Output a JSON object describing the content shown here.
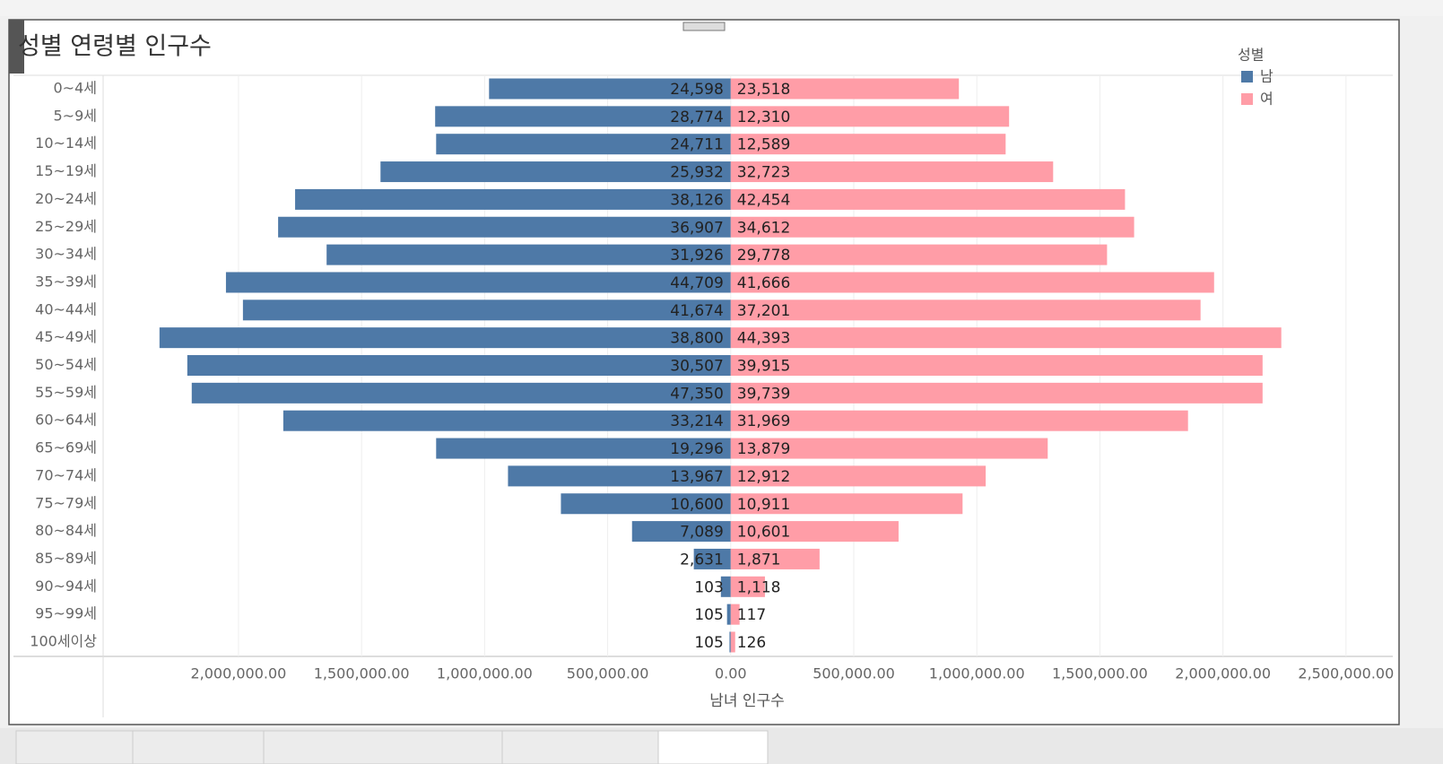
{
  "chart_data": {
    "type": "diverging-bar",
    "title": "성별 연령별 인구수",
    "x_label": "남녀 인구수",
    "legend_title": "성별",
    "legend_position": "top-right",
    "categories": [
      "0~4세",
      "5~9세",
      "10~14세",
      "15~19세",
      "20~24세",
      "25~29세",
      "30~34세",
      "35~39세",
      "40~44세",
      "45~49세",
      "50~54세",
      "55~59세",
      "60~64세",
      "65~69세",
      "70~74세",
      "75~79세",
      "80~84세",
      "85~89세",
      "90~94세",
      "95~99세",
      "100세이상"
    ],
    "series": [
      {
        "name": "남",
        "color": "#4e79a7",
        "values": [
          -982000,
          -1201000,
          -1197000,
          -1423000,
          -1770000,
          -1839000,
          -1642000,
          -2051000,
          -1982000,
          -2321000,
          -2208000,
          -2190000,
          -1818000,
          -1197000,
          -905000,
          -690000,
          -401000,
          -150000,
          -40000,
          -15000,
          -5000
        ],
        "bar_labels": [
          "24,598",
          "28,774",
          "24,711",
          "25,932",
          "38,126",
          "36,907",
          "31,926",
          "44,709",
          "41,674",
          "38,800",
          "30,507",
          "47,350",
          "33,214",
          "19,296",
          "13,967",
          "10,600",
          "7,089",
          "2,631",
          "103",
          "105",
          "105"
        ]
      },
      {
        "name": "여",
        "color": "#ff9da7",
        "values": [
          927000,
          1131000,
          1117000,
          1310000,
          1602000,
          1639000,
          1529000,
          1964000,
          1909000,
          2237000,
          2161000,
          2161000,
          1858000,
          1288000,
          1036000,
          942000,
          682000,
          361000,
          139000,
          36000,
          18000
        ],
        "bar_labels": [
          "23,518",
          "12,310",
          "12,589",
          "32,723",
          "42,454",
          "34,612",
          "29,778",
          "41,666",
          "37,201",
          "44,393",
          "39,915",
          "39,739",
          "31,969",
          "13,879",
          "12,912",
          "10,911",
          "10,601",
          "1,871",
          "1,118",
          "117",
          "126"
        ]
      }
    ],
    "xlim": [
      -2550000,
      2690000
    ],
    "xticks": [
      {
        "value": -2000000,
        "label": "2,000,000.00"
      },
      {
        "value": -1500000,
        "label": "1,500,000.00"
      },
      {
        "value": -1000000,
        "label": "1,000,000.00"
      },
      {
        "value": -500000,
        "label": "500,000.00"
      },
      {
        "value": 0,
        "label": "0.00"
      },
      {
        "value": 500000,
        "label": "500,000.00"
      },
      {
        "value": 1000000,
        "label": "1,000,000.00"
      },
      {
        "value": 1500000,
        "label": "1,500,000.00"
      },
      {
        "value": 2000000,
        "label": "2,000,000.00"
      },
      {
        "value": 2500000,
        "label": "2,500,000.00"
      }
    ],
    "grid": true
  }
}
